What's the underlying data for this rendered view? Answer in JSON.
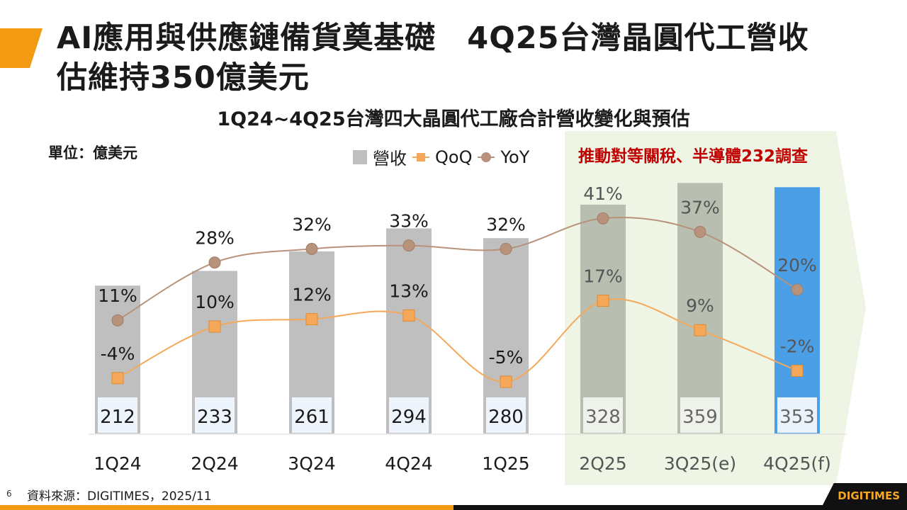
{
  "title": "AI應用與供應鏈備貨奠基礎　4Q25台灣晶圓代工營收\n估維持350億美元",
  "chart_data": {
    "type": "bar",
    "title": "1Q24~4Q25台灣四大晶圓代工廠合計營收變化與預估",
    "unit": "單位：億美元",
    "categories": [
      "1Q24",
      "2Q24",
      "3Q24",
      "4Q24",
      "1Q25",
      "2Q25",
      "3Q25(e)",
      "4Q25(f)"
    ],
    "series": [
      {
        "name": "營收",
        "type": "bar",
        "values": [
          212,
          233,
          261,
          294,
          280,
          328,
          359,
          353
        ]
      },
      {
        "name": "QoQ",
        "type": "line",
        "unit": "%",
        "values": [
          -4,
          10,
          12,
          13,
          -5,
          17,
          9,
          -2
        ]
      },
      {
        "name": "YoY",
        "type": "line",
        "unit": "%",
        "values": [
          11,
          28,
          32,
          33,
          32,
          41,
          37,
          20
        ]
      }
    ],
    "legend": [
      "營收",
      "QoQ",
      "YoY"
    ],
    "annotation": "推動對等關稅、半導體232調查",
    "colors": {
      "bar": "#bfbfbf",
      "bar_highlight": "#b8beb0",
      "bar_forecast": "#4a9fe6",
      "qoq": "#f5a85a",
      "yoy": "#b8927a",
      "highlight_bg": "#eef5e4"
    }
  },
  "footer": {
    "page": "6",
    "source": "資料來源：DIGITIMES，2025/11",
    "logo": "DIGITIMES"
  }
}
